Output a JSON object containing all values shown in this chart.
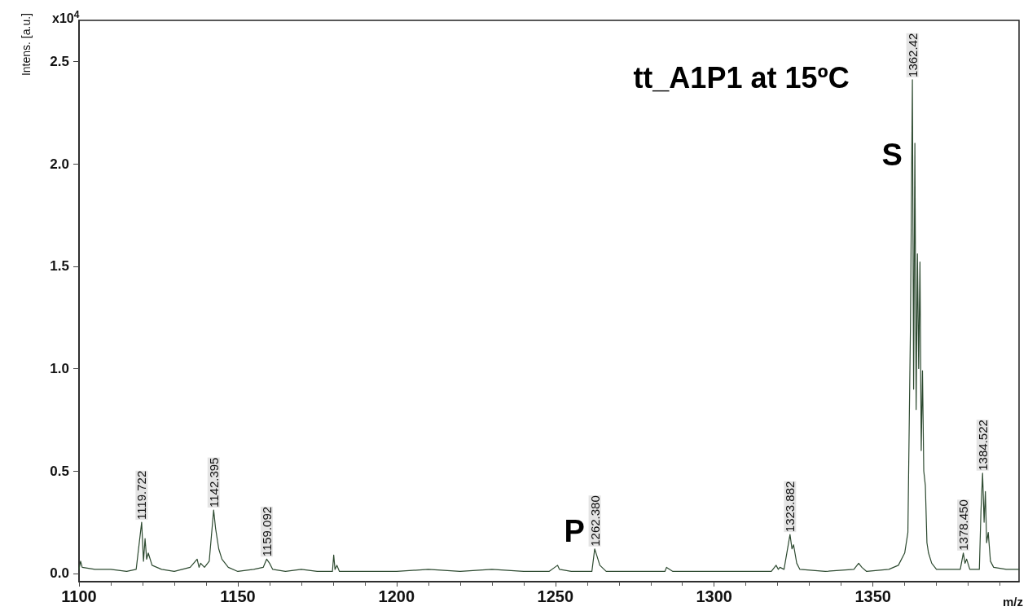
{
  "chart_data": {
    "type": "line",
    "title": "tt_A1P1 at 15ºC",
    "xlabel": "m/z",
    "ylabel": "Intens. [a.u.]",
    "annotations": [
      "x10$^{4}$",
      {
        "text": "1119.722",
        "x": 1119.722,
        "y": 0.25
      },
      {
        "text": "1142.395",
        "x": 1142.395,
        "y": 0.31
      },
      {
        "text": "1159.092",
        "x": 1159.092,
        "y": 0.07
      },
      {
        "text": "1262.380",
        "x": 1262.38,
        "y": 0.12
      },
      {
        "text": "1323.882",
        "x": 1323.882,
        "y": 0.19
      },
      {
        "text": "1362.42",
        "x": 1362.42,
        "y": 2.41
      },
      {
        "text": "1378.450",
        "x": 1378.45,
        "y": 0.1
      },
      {
        "text": "1384.522",
        "x": 1384.522,
        "y": 0.49
      },
      "P",
      "S"
    ],
    "series": [
      {
        "color": "#2d4a30",
        "x": [
          1100,
          1100.5,
          1101,
          1105,
          1110,
          1115,
          1118,
          1119.722,
          1120.3,
          1120.8,
          1121.3,
          1121.8,
          1123,
          1126,
          1130,
          1135,
          1137.2,
          1137.8,
          1138.3,
          1139.5,
          1141,
          1142.395,
          1143,
          1144,
          1145,
          1147,
          1150,
          1155,
          1158,
          1159.092,
          1160,
          1161,
          1165,
          1170,
          1175,
          1179.8,
          1180.2,
          1180.6,
          1181.2,
          1182,
          1190,
          1200,
          1210,
          1220,
          1230,
          1240,
          1248,
          1250.7,
          1251.3,
          1255,
          1261.5,
          1262.38,
          1263,
          1264,
          1266,
          1275,
          1284.5,
          1285,
          1287,
          1300,
          1310,
          1318,
          1319.5,
          1320.2,
          1320.7,
          1322,
          1323.882,
          1324.5,
          1325,
          1326,
          1327,
          1335,
          1344,
          1345.5,
          1346.5,
          1348,
          1355,
          1358,
          1360,
          1361,
          1361.8,
          1362.42,
          1362.8,
          1363.2,
          1363.6,
          1364,
          1364.4,
          1364.8,
          1365.2,
          1365.6,
          1366,
          1366.5,
          1367,
          1367.5,
          1368.5,
          1370,
          1375,
          1377.5,
          1378.45,
          1379,
          1379.5,
          1380.5,
          1383.5,
          1384,
          1384.522,
          1385,
          1385.4,
          1385.8,
          1386.3,
          1387,
          1388,
          1392,
          1396
        ],
        "values": [
          0.02,
          0.06,
          0.03,
          0.02,
          0.02,
          0.01,
          0.02,
          0.25,
          0.06,
          0.17,
          0.07,
          0.1,
          0.04,
          0.02,
          0.01,
          0.03,
          0.07,
          0.03,
          0.05,
          0.03,
          0.06,
          0.31,
          0.22,
          0.12,
          0.07,
          0.03,
          0.01,
          0.02,
          0.03,
          0.07,
          0.05,
          0.02,
          0.01,
          0.02,
          0.01,
          0.01,
          0.09,
          0.02,
          0.04,
          0.01,
          0.01,
          0.01,
          0.02,
          0.01,
          0.02,
          0.01,
          0.01,
          0.04,
          0.02,
          0.01,
          0.01,
          0.12,
          0.09,
          0.04,
          0.01,
          0.01,
          0.01,
          0.03,
          0.01,
          0.01,
          0.01,
          0.01,
          0.04,
          0.02,
          0.03,
          0.02,
          0.19,
          0.12,
          0.14,
          0.05,
          0.02,
          0.01,
          0.02,
          0.05,
          0.03,
          0.01,
          0.02,
          0.04,
          0.1,
          0.2,
          1.2,
          2.41,
          0.9,
          2.1,
          0.8,
          1.56,
          1.0,
          1.52,
          0.6,
          0.99,
          0.5,
          0.43,
          0.15,
          0.1,
          0.05,
          0.02,
          0.02,
          0.02,
          0.1,
          0.05,
          0.07,
          0.02,
          0.02,
          0.3,
          0.49,
          0.25,
          0.4,
          0.15,
          0.2,
          0.06,
          0.03,
          0.02,
          0.02
        ]
      }
    ],
    "xlim": [
      1100,
      1396
    ],
    "xticks": [
      1100,
      1150,
      1200,
      1250,
      1300,
      1350
    ],
    "ylim": [
      -0.04,
      2.7
    ],
    "yticks": [
      {
        "value": 0,
        "label": "0.0"
      },
      0.5,
      {
        "value": 1,
        "label": "1.0"
      },
      1.5,
      {
        "value": 2,
        "label": "2.0"
      },
      2.5
    ],
    "grid": false,
    "marker": "none",
    "line_style": "solid"
  }
}
